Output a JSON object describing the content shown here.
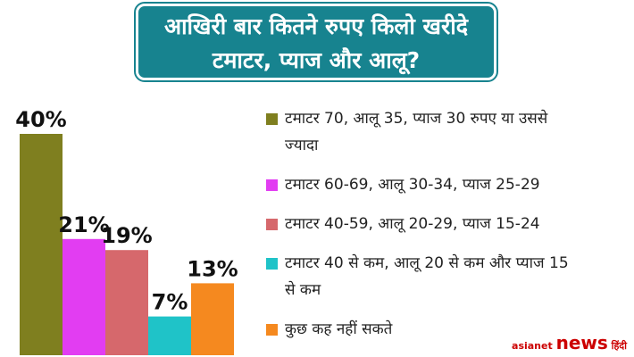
{
  "chart_data": {
    "type": "bar",
    "title": "आखिरी बार कितने रुपए किलो खरीदे टमाटर, प्याज और आलू?",
    "categories": [
      "टमाटर 70, आलू 35, प्याज 30 रुपए या उससे ज्यादा",
      "टमाटर 60-69, आलू 30-34, प्याज 25-29",
      "टमाटर 40-59, आलू 20-29, प्याज 15-24",
      "टमाटर 40 से कम, आलू 20 से कम और प्याज 15 से कम",
      "कुछ कह नहीं सकते"
    ],
    "values": [
      40,
      21,
      19,
      7,
      13
    ],
    "value_labels": [
      "40%",
      "21%",
      "19%",
      "7%",
      "13%"
    ],
    "colors": [
      "#7f7f1f",
      "#e23df2",
      "#d6686c",
      "#1fc3c8",
      "#f5891f"
    ]
  },
  "logo": {
    "brand": "asianet",
    "name": "news",
    "lang": "हिंदी"
  }
}
